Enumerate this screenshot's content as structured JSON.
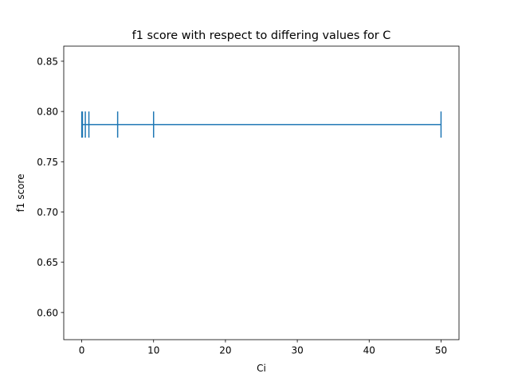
{
  "chart_data": {
    "type": "line",
    "title": "f1 score with respect to differing values for C",
    "xlabel": "Ci",
    "ylabel": "f1 score",
    "xlim": [
      -2.5,
      52.5
    ],
    "ylim": [
      0.573,
      0.865
    ],
    "xticks": [
      0,
      10,
      20,
      30,
      40,
      50
    ],
    "xtick_labels": [
      "0",
      "10",
      "20",
      "30",
      "40",
      "50"
    ],
    "yticks": [
      0.6,
      0.65,
      0.7,
      0.75,
      0.8,
      0.85
    ],
    "ytick_labels": [
      "0.60",
      "0.65",
      "0.70",
      "0.75",
      "0.80",
      "0.85"
    ],
    "grid": false,
    "series": [
      {
        "x": [
          0.01,
          0.1,
          0.5,
          1,
          5,
          10,
          50
        ],
        "y": [
          0.787,
          0.787,
          0.787,
          0.787,
          0.787,
          0.787,
          0.787
        ],
        "yerr": [
          0.013,
          0.013,
          0.013,
          0.013,
          0.013,
          0.013,
          0.013
        ],
        "color": "#1f77b4"
      }
    ]
  }
}
